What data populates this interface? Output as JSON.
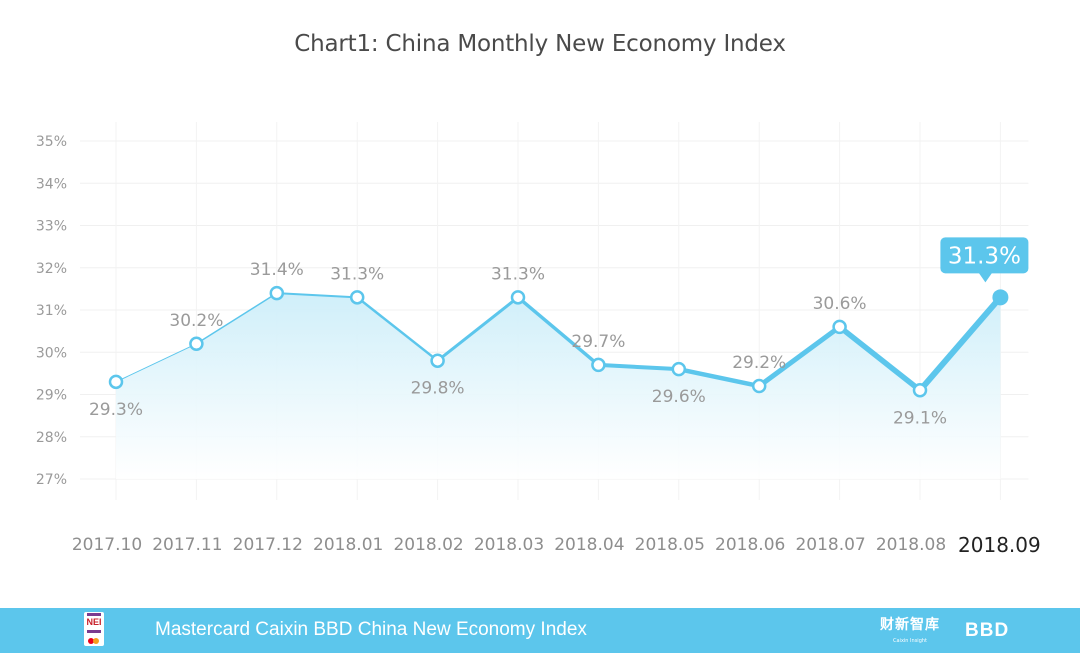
{
  "chart_data": {
    "type": "line",
    "title": "Chart1: China Monthly New Economy Index",
    "categories": [
      "2017.10",
      "2017.11",
      "2017.12",
      "2018.01",
      "2018.02",
      "2018.03",
      "2018.04",
      "2018.05",
      "2018.06",
      "2018.07",
      "2018.08",
      "2018.09"
    ],
    "values": [
      29.3,
      30.2,
      31.4,
      31.3,
      29.8,
      31.3,
      29.7,
      29.6,
      29.2,
      30.6,
      29.1,
      31.3
    ],
    "value_labels": [
      "29.3%",
      "30.2%",
      "31.4%",
      "31.3%",
      "29.8%",
      "31.3%",
      "29.7%",
      "29.6%",
      "29.2%",
      "30.6%",
      "29.1%",
      "31.3%"
    ],
    "ylim": [
      27,
      35
    ],
    "yticks": [
      "27%",
      "28%",
      "29%",
      "30%",
      "31%",
      "32%",
      "33%",
      "34%",
      "35%"
    ],
    "grid": true,
    "highlight": "31.3%",
    "colors": {
      "line": "#5cc6ec",
      "area": "#d9f1fa",
      "marker_fill": "#ffffff",
      "title": "#4a4a4a"
    }
  },
  "footer": {
    "logo_text": "NEI",
    "text": "Mastercard Caixin BBD China New Economy Index",
    "caixin_logo": "财新智库",
    "caixin_sub": "Caixin Insight",
    "bbd_logo": "BBD",
    "background": "#5cc6ec"
  }
}
